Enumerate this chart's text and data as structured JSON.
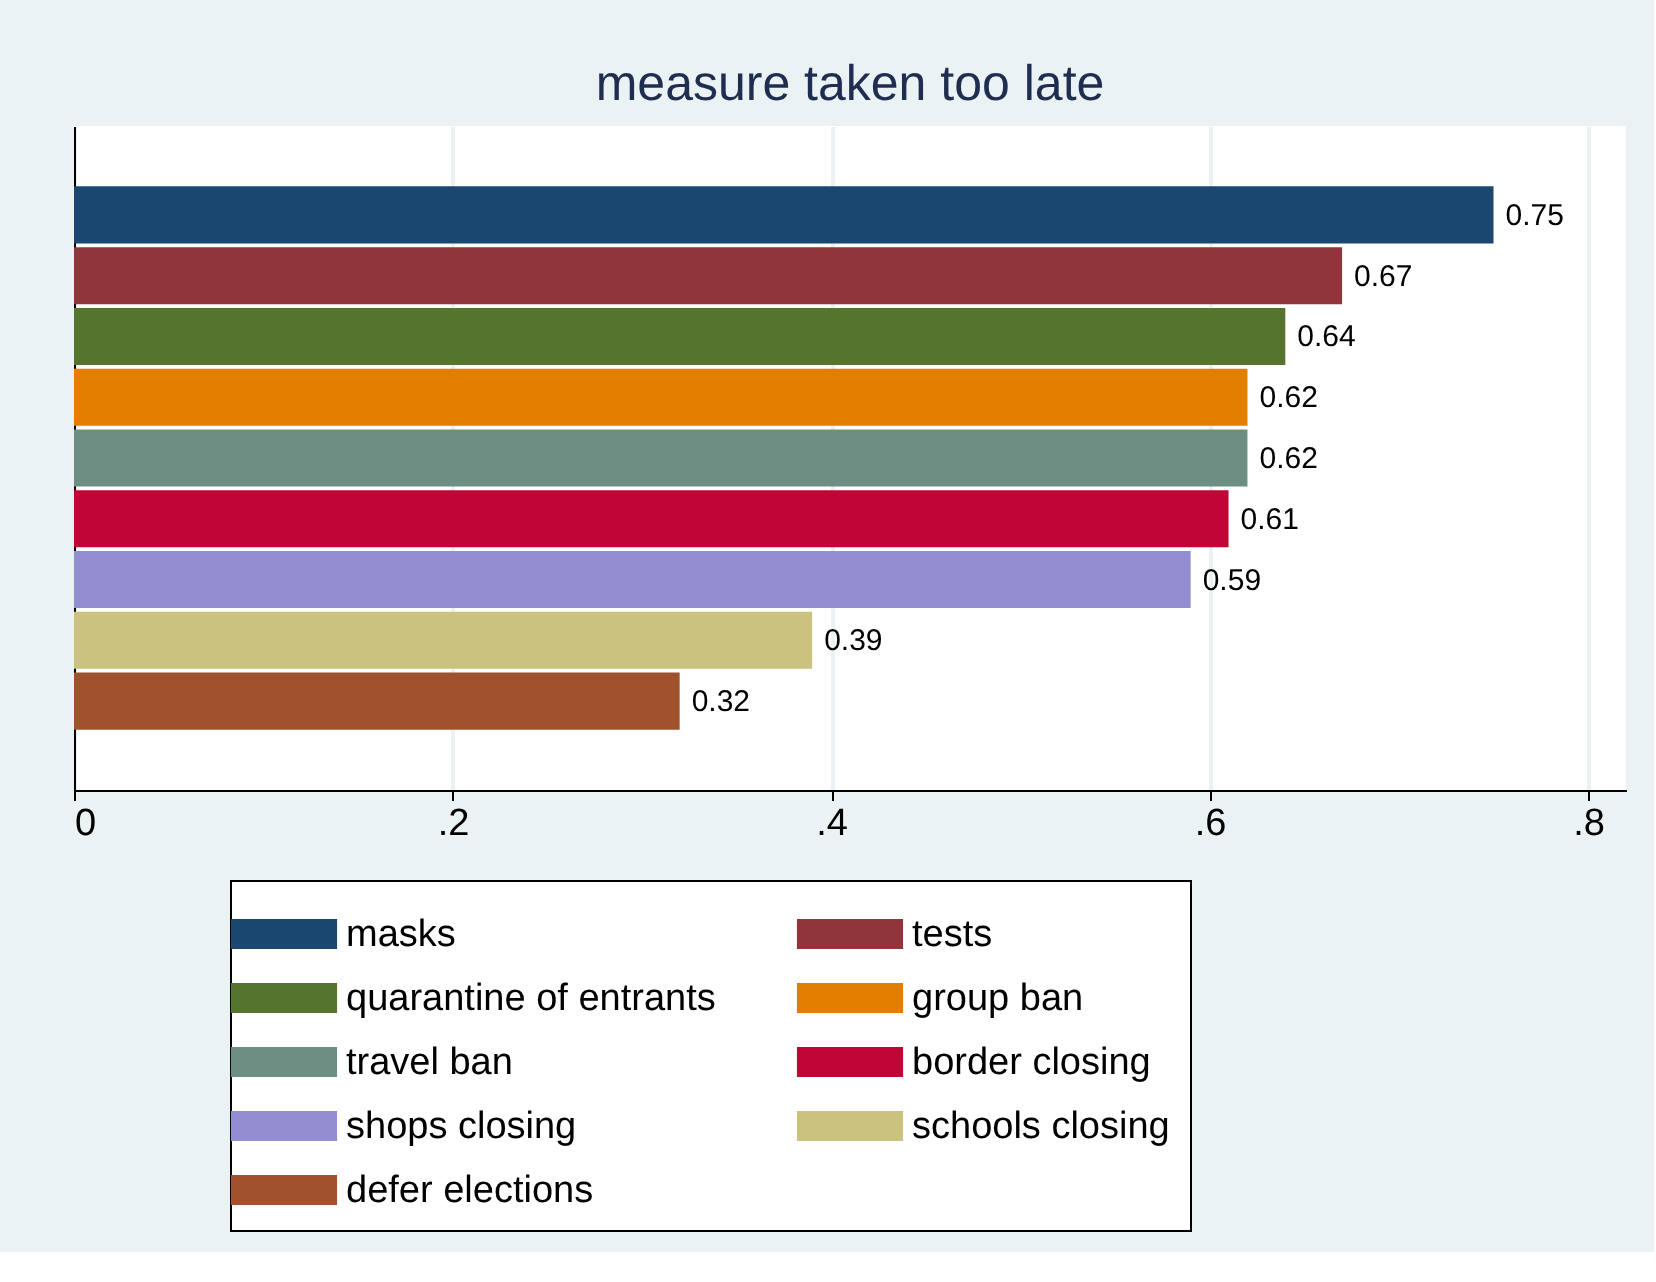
{
  "chart_data": {
    "type": "bar",
    "orientation": "horizontal",
    "title": "measure taken too late",
    "categories": [
      null
    ],
    "series": [
      {
        "name": "masks",
        "color": "#1a476f",
        "values": [
          0.75
        ]
      },
      {
        "name": "tests",
        "color": "#90353b",
        "values": [
          0.67
        ]
      },
      {
        "name": "quarantine of entrants",
        "color": "#55752f",
        "values": [
          0.64
        ]
      },
      {
        "name": "group ban",
        "color": "#e37e00",
        "values": [
          0.62
        ]
      },
      {
        "name": "travel ban",
        "color": "#6e8e84",
        "values": [
          0.62
        ]
      },
      {
        "name": "border closing",
        "color": "#c10534",
        "values": [
          0.61
        ]
      },
      {
        "name": "shops closing",
        "color": "#938dd2",
        "values": [
          0.59
        ]
      },
      {
        "name": "schools closing",
        "color": "#cac27e",
        "values": [
          0.39
        ]
      },
      {
        "name": "defer elections",
        "color": "#a0522d",
        "values": [
          0.32
        ]
      }
    ],
    "xlim": [
      0,
      0.82
    ],
    "xticks": [
      0,
      {
        "value": 0.2,
        "label": ".2"
      },
      {
        "value": 0.4,
        "label": ".4"
      },
      {
        "value": 0.6,
        "label": ".6"
      },
      {
        "value": 0.8,
        "label": ".8"
      }
    ],
    "grid": "x",
    "legend": "bottom",
    "data_labels": true,
    "tick_labels": "x"
  }
}
